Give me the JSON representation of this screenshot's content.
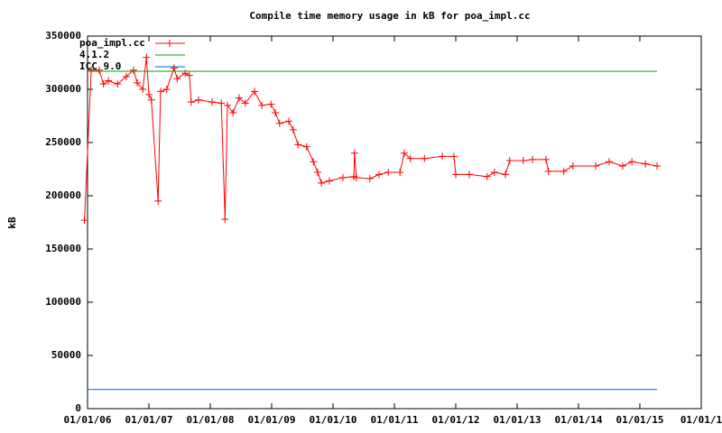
{
  "chart_data": {
    "type": "line",
    "title": "Compile time memory usage in kB for poa_impl.cc",
    "y_label": "kB",
    "xlim": [
      2006,
      2016
    ],
    "ylim": [
      0,
      350000
    ],
    "xticks": [
      {
        "value": 2006,
        "label": "01/01/06"
      },
      {
        "value": 2007,
        "label": "01/01/07"
      },
      {
        "value": 2008,
        "label": "01/01/08"
      },
      {
        "value": 2009,
        "label": "01/01/09"
      },
      {
        "value": 2010,
        "label": "01/01/10"
      },
      {
        "value": 2011,
        "label": "01/01/11"
      },
      {
        "value": 2012,
        "label": "01/01/12"
      },
      {
        "value": 2013,
        "label": "01/01/13"
      },
      {
        "value": 2014,
        "label": "01/01/14"
      },
      {
        "value": 2015,
        "label": "01/01/15"
      },
      {
        "value": 2016,
        "label": "01/01/1"
      }
    ],
    "yticks": [
      0,
      50000,
      100000,
      150000,
      200000,
      250000,
      300000,
      350000
    ],
    "legend": "top-left",
    "series": [
      {
        "name": "poa_impl.cc",
        "color": "#ff0000",
        "marker": "cross",
        "x": [
          2005.95,
          2006.06,
          2006.19,
          2006.26,
          2006.34,
          2006.49,
          2006.63,
          2006.75,
          2006.81,
          2006.9,
          2006.96,
          2007.0,
          2007.04,
          2007.15,
          2007.19,
          2007.29,
          2007.41,
          2007.46,
          2007.59,
          2007.66,
          2007.69,
          2007.81,
          2008.03,
          2008.18,
          2008.24,
          2008.28,
          2008.37,
          2008.47,
          2008.57,
          2008.72,
          2008.84,
          2008.99,
          2009.06,
          2009.13,
          2009.28,
          2009.35,
          2009.43,
          2009.57,
          2009.68,
          2009.75,
          2009.81,
          2009.94,
          2010.16,
          2010.34,
          2010.35,
          2010.38,
          2010.6,
          2010.75,
          2010.9,
          2011.09,
          2011.16,
          2011.26,
          2011.49,
          2011.78,
          2011.97,
          2012.0,
          2012.22,
          2012.51,
          2012.63,
          2012.81,
          2012.88,
          2013.1,
          2013.25,
          2013.47,
          2013.51,
          2013.76,
          2013.91,
          2014.28,
          2014.5,
          2014.72,
          2014.87,
          2015.09,
          2015.28
        ],
        "values": [
          177000,
          318000,
          318000,
          305000,
          308000,
          305000,
          312000,
          318000,
          306000,
          300000,
          330000,
          295000,
          290000,
          195000,
          298000,
          300000,
          320000,
          310000,
          315000,
          313000,
          288000,
          290000,
          288000,
          287000,
          178000,
          285000,
          278000,
          292000,
          287000,
          298000,
          285000,
          286000,
          278000,
          268000,
          270000,
          262000,
          248000,
          246000,
          232000,
          222000,
          212000,
          214000,
          217000,
          218000,
          240000,
          217000,
          216000,
          220000,
          222000,
          222000,
          240000,
          235000,
          235000,
          237000,
          237000,
          220000,
          220000,
          218000,
          222000,
          220000,
          233000,
          233000,
          234000,
          234000,
          223000,
          223000,
          228000,
          228000,
          232000,
          228000,
          232000,
          230000,
          228000
        ]
      },
      {
        "name": "4.1.2",
        "color": "#00a000",
        "x": [
          2006,
          2015.28
        ],
        "values": [
          317000,
          317000
        ]
      },
      {
        "name": "ICC 9.0",
        "color": "#0060e0",
        "x": [
          2006,
          2015.28
        ],
        "values": [
          18000,
          18000
        ]
      }
    ]
  }
}
